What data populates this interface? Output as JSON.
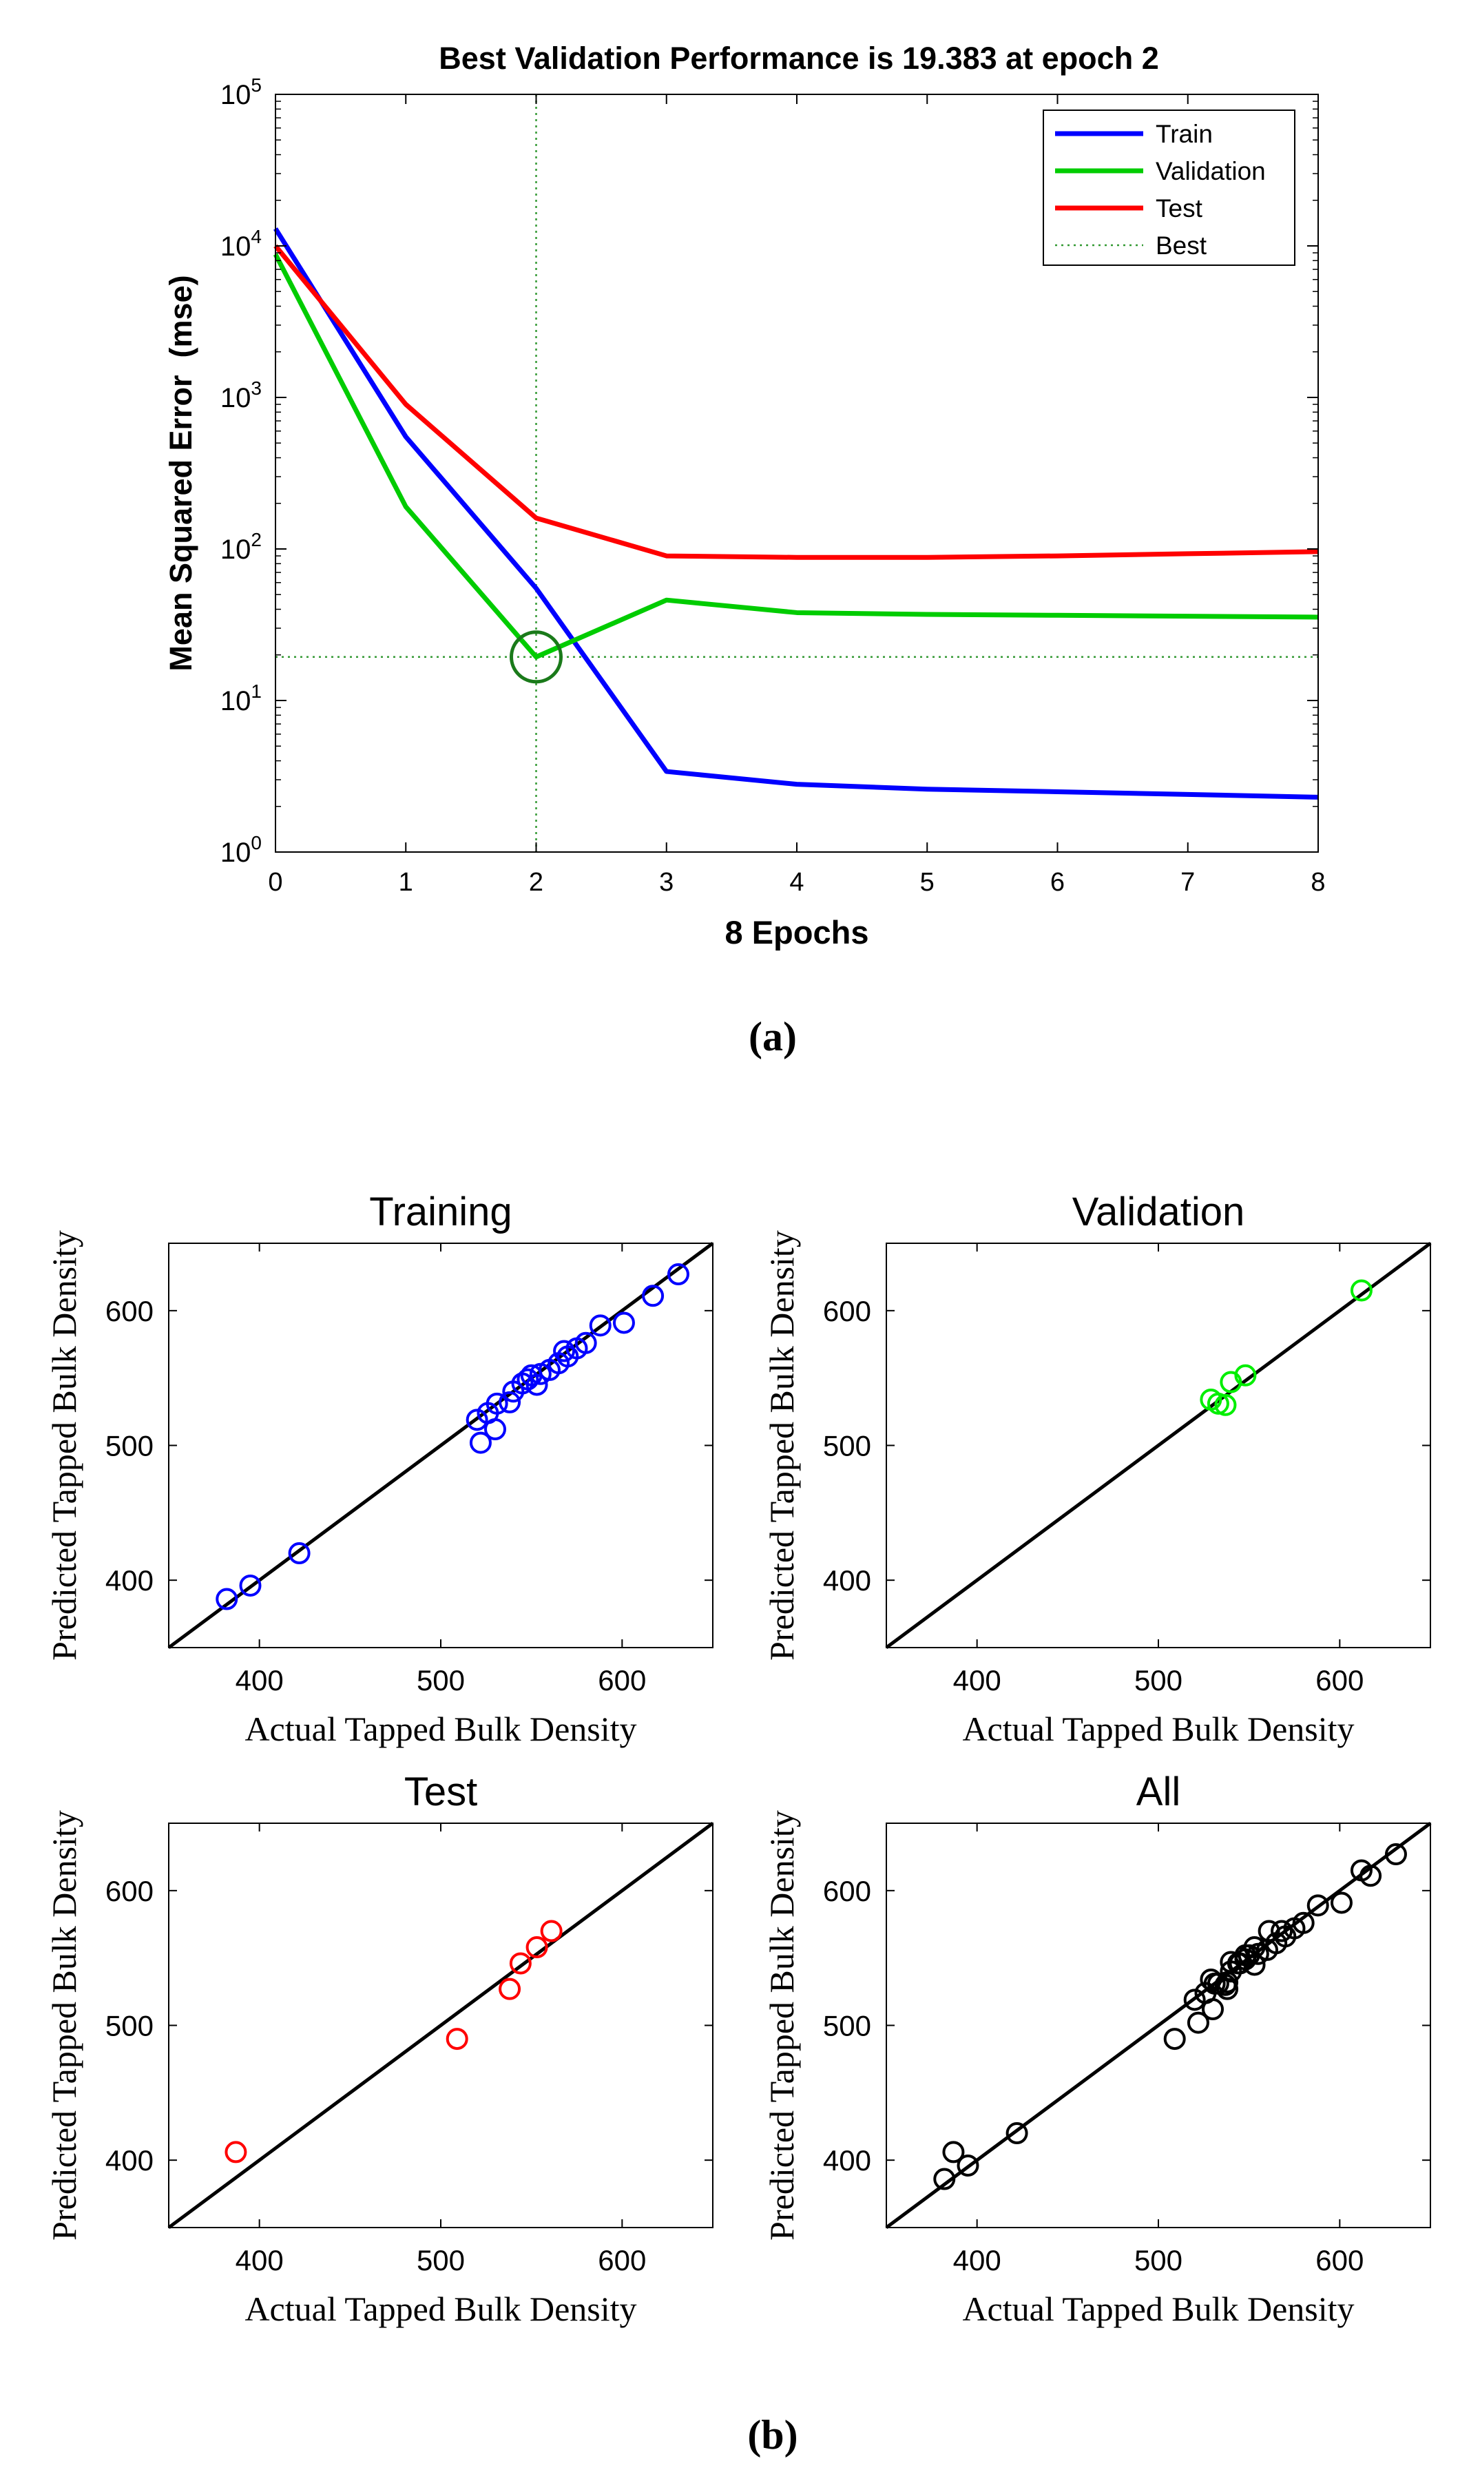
{
  "panel_a": {
    "caption": "(a)"
  },
  "panel_b": {
    "caption": "(b)"
  },
  "colors": {
    "train": "#0000ff",
    "validation": "#00cc00",
    "test": "#ff0000",
    "best": "#339933",
    "all": "#000000"
  },
  "chart_data": [
    {
      "type": "line",
      "title": "Best Validation Performance is 19.383 at epoch 2",
      "xlabel": "8 Epochs",
      "ylabel": "Mean Squared Error  (mse)",
      "xlim": [
        0,
        8
      ],
      "ylim": [
        1,
        100000
      ],
      "yscale": "log",
      "xticks": [
        "0",
        "1",
        "2",
        "3",
        "4",
        "5",
        "6",
        "7",
        "8"
      ],
      "yticks": [
        {
          "value": 1,
          "base": "10",
          "exp": "0"
        },
        {
          "value": 10,
          "base": "10",
          "exp": "1"
        },
        {
          "value": 100,
          "base": "10",
          "exp": "2"
        },
        {
          "value": 1000,
          "base": "10",
          "exp": "3"
        },
        {
          "value": 10000,
          "base": "10",
          "exp": "4"
        },
        {
          "value": 100000,
          "base": "10",
          "exp": "5"
        }
      ],
      "legend_position": "top-right",
      "x": [
        0,
        1,
        2,
        3,
        4,
        5,
        6,
        7,
        8
      ],
      "series": [
        {
          "name": "Train",
          "color": "#0000ff",
          "values": [
            13000,
            550,
            55,
            3.4,
            2.8,
            2.6,
            2.5,
            2.4,
            2.3
          ]
        },
        {
          "name": "Validation",
          "color": "#00cc00",
          "values": [
            8800,
            190,
            19.383,
            46,
            38,
            37,
            36.5,
            36,
            35.5
          ]
        },
        {
          "name": "Test",
          "color": "#ff0000",
          "values": [
            10000,
            900,
            160,
            90,
            88,
            88,
            90,
            93,
            96
          ]
        }
      ],
      "best": {
        "name": "Best",
        "epoch": 2,
        "value": 19.383,
        "color": "#339933"
      }
    },
    {
      "type": "scatter",
      "title": "Training",
      "xlabel": "Actual Tapped Bulk Density",
      "ylabel": "Predicted Tapped Bulk Density",
      "xlim": [
        350,
        650
      ],
      "ylim": [
        350,
        650
      ],
      "xticks": [
        400,
        500,
        600
      ],
      "yticks": [
        400,
        500,
        600
      ],
      "color": "#0000ff",
      "points": [
        [
          382,
          386
        ],
        [
          395,
          396
        ],
        [
          422,
          420
        ],
        [
          520,
          519
        ],
        [
          522,
          502
        ],
        [
          526,
          524
        ],
        [
          530,
          512
        ],
        [
          531,
          531
        ],
        [
          538,
          532
        ],
        [
          540,
          540
        ],
        [
          545,
          546
        ],
        [
          548,
          549
        ],
        [
          550,
          552
        ],
        [
          553,
          545
        ],
        [
          555,
          553
        ],
        [
          560,
          556
        ],
        [
          565,
          561
        ],
        [
          568,
          570
        ],
        [
          570,
          566
        ],
        [
          575,
          572
        ],
        [
          580,
          576
        ],
        [
          588,
          589
        ],
        [
          601,
          591
        ],
        [
          617,
          611
        ],
        [
          631,
          627
        ]
      ],
      "fit_line": [
        [
          350,
          350
        ],
        [
          650,
          650
        ]
      ]
    },
    {
      "type": "scatter",
      "title": "Validation",
      "xlabel": "Actual Tapped Bulk Density",
      "ylabel": "Predicted Tapped Bulk Density",
      "xlim": [
        350,
        650
      ],
      "ylim": [
        350,
        650
      ],
      "xticks": [
        400,
        500,
        600
      ],
      "yticks": [
        400,
        500,
        600
      ],
      "color": "#00ee00",
      "points": [
        [
          529,
          534
        ],
        [
          533,
          531
        ],
        [
          537,
          530
        ],
        [
          540,
          547
        ],
        [
          548,
          552
        ],
        [
          612,
          615
        ]
      ],
      "fit_line": [
        [
          350,
          350
        ],
        [
          650,
          650
        ]
      ]
    },
    {
      "type": "scatter",
      "title": "Test",
      "xlabel": "Actual Tapped Bulk Density",
      "ylabel": "Predicted Tapped Bulk Density",
      "xlim": [
        350,
        650
      ],
      "ylim": [
        350,
        650
      ],
      "xticks": [
        400,
        500,
        600
      ],
      "yticks": [
        400,
        500,
        600
      ],
      "color": "#ff0000",
      "points": [
        [
          387,
          406
        ],
        [
          509,
          490
        ],
        [
          538,
          527
        ],
        [
          544,
          546
        ],
        [
          553,
          558
        ],
        [
          561,
          570
        ]
      ],
      "fit_line": [
        [
          350,
          350
        ],
        [
          650,
          650
        ]
      ]
    },
    {
      "type": "scatter",
      "title": "All",
      "xlabel": "Actual Tapped Bulk Density",
      "ylabel": "Predicted Tapped Bulk Density",
      "xlim": [
        350,
        650
      ],
      "ylim": [
        350,
        650
      ],
      "xticks": [
        400,
        500,
        600
      ],
      "yticks": [
        400,
        500,
        600
      ],
      "color": "#000000",
      "points": [
        [
          382,
          386
        ],
        [
          387,
          406
        ],
        [
          395,
          396
        ],
        [
          422,
          420
        ],
        [
          509,
          490
        ],
        [
          520,
          519
        ],
        [
          522,
          502
        ],
        [
          526,
          524
        ],
        [
          529,
          534
        ],
        [
          530,
          512
        ],
        [
          531,
          531
        ],
        [
          533,
          531
        ],
        [
          537,
          530
        ],
        [
          538,
          527
        ],
        [
          538,
          532
        ],
        [
          540,
          540
        ],
        [
          540,
          547
        ],
        [
          544,
          546
        ],
        [
          545,
          546
        ],
        [
          548,
          549
        ],
        [
          548,
          552
        ],
        [
          550,
          552
        ],
        [
          553,
          558
        ],
        [
          553,
          545
        ],
        [
          555,
          553
        ],
        [
          560,
          556
        ],
        [
          561,
          570
        ],
        [
          565,
          561
        ],
        [
          568,
          570
        ],
        [
          570,
          566
        ],
        [
          575,
          572
        ],
        [
          580,
          576
        ],
        [
          588,
          589
        ],
        [
          601,
          591
        ],
        [
          612,
          615
        ],
        [
          617,
          611
        ],
        [
          631,
          627
        ]
      ],
      "fit_line": [
        [
          350,
          350
        ],
        [
          650,
          650
        ]
      ]
    }
  ]
}
